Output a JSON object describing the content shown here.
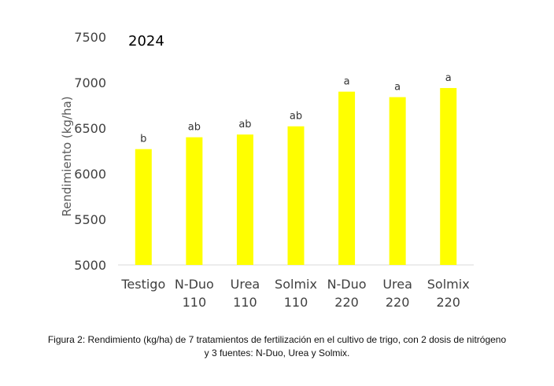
{
  "chart_data": {
    "type": "bar",
    "title": "2024",
    "ylabel": "Rendimiento (kg/ha)",
    "xlabel": "",
    "categories": [
      [
        "Testigo"
      ],
      [
        "N-Duo",
        "110"
      ],
      [
        "Urea",
        "110"
      ],
      [
        "Solmix",
        "110"
      ],
      [
        "N-Duo",
        "220"
      ],
      [
        "Urea",
        "220"
      ],
      [
        "Solmix",
        "220"
      ]
    ],
    "values": [
      6270,
      6400,
      6430,
      6520,
      6900,
      6840,
      6940
    ],
    "significance_labels": [
      "b",
      "ab",
      "ab",
      "ab",
      "a",
      "a",
      "a"
    ],
    "ylim": [
      5000,
      7500
    ],
    "yticks": [
      5000,
      5500,
      6000,
      6500,
      7000,
      7500
    ],
    "grid": false,
    "bar_color": "#ffff00"
  },
  "caption": "Figura 2: Rendimiento (kg/ha) de 7 tratamientos de fertilización en el cultivo de trigo, con 2 dosis de nitrógeno y 3 fuentes: N-Duo, Urea y Solmix."
}
